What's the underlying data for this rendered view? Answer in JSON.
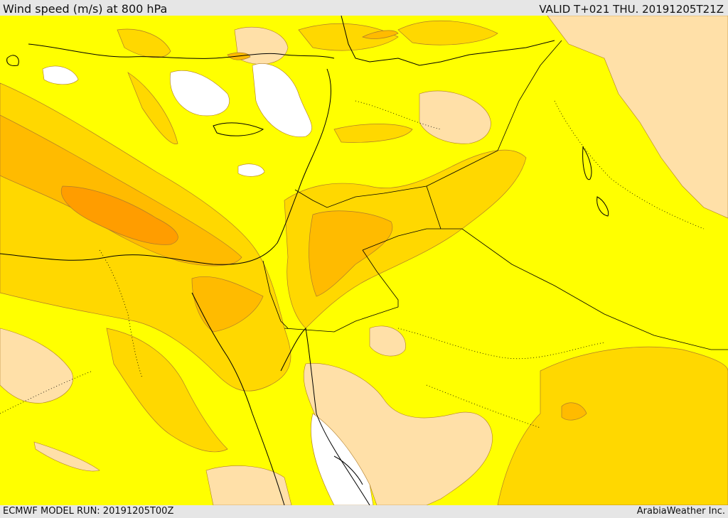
{
  "header": {
    "title": "Wind speed (m/s) at 800 hPa",
    "valid": "VALID T+021 THU. 20191205T21Z"
  },
  "footer": {
    "model_run": "ECMWF MODEL RUN: 20191205T00Z",
    "credit": "ArabiaWeather Inc."
  },
  "colors": {
    "background": "#ffff00",
    "low_wind": "#ffe0a8",
    "calm": "#ffffff",
    "moderate": "#ffd800",
    "strong": "#ffbb00",
    "very_strong": "#ff9d00",
    "coastline": "#000000",
    "contour": "#b07c2a"
  }
}
